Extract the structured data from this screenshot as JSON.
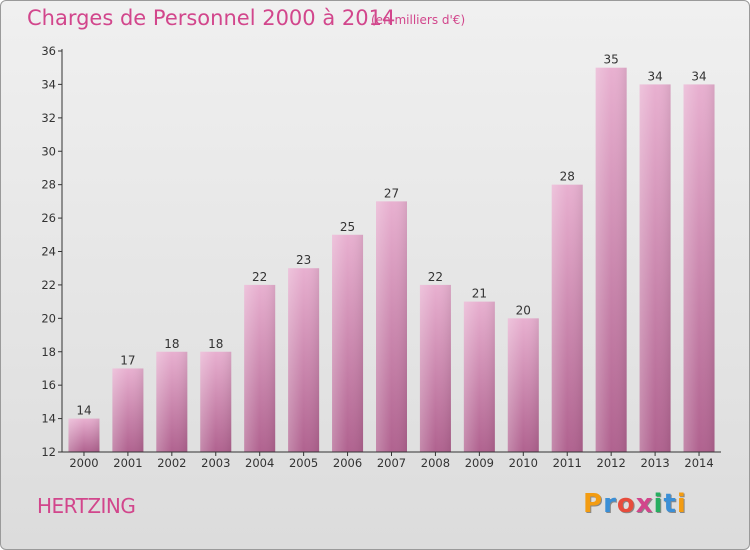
{
  "title": "Charges de Personnel 2000 à 2014",
  "subtitle": "(en milliers d'€)",
  "commune": "HERTZING",
  "logo": [
    "P",
    "r",
    "o",
    "x",
    "i",
    "t",
    "i"
  ],
  "colors": {
    "title": "#d2468c",
    "bar_top": "#e8b0d0",
    "bar_bottom": "#b0628f",
    "axis": "#333333"
  },
  "chart_data": {
    "type": "bar",
    "categories": [
      "2000",
      "2001",
      "2002",
      "2003",
      "2004",
      "2005",
      "2006",
      "2007",
      "2008",
      "2009",
      "2010",
      "2011",
      "2012",
      "2013",
      "2014"
    ],
    "values": [
      14,
      17,
      18,
      18,
      22,
      23,
      25,
      27,
      22,
      21,
      20,
      28,
      35,
      34,
      34
    ],
    "ylim": [
      12,
      36
    ],
    "yticks": [
      12,
      14,
      16,
      18,
      20,
      22,
      24,
      26,
      28,
      30,
      32,
      34,
      36
    ],
    "grid": false
  }
}
